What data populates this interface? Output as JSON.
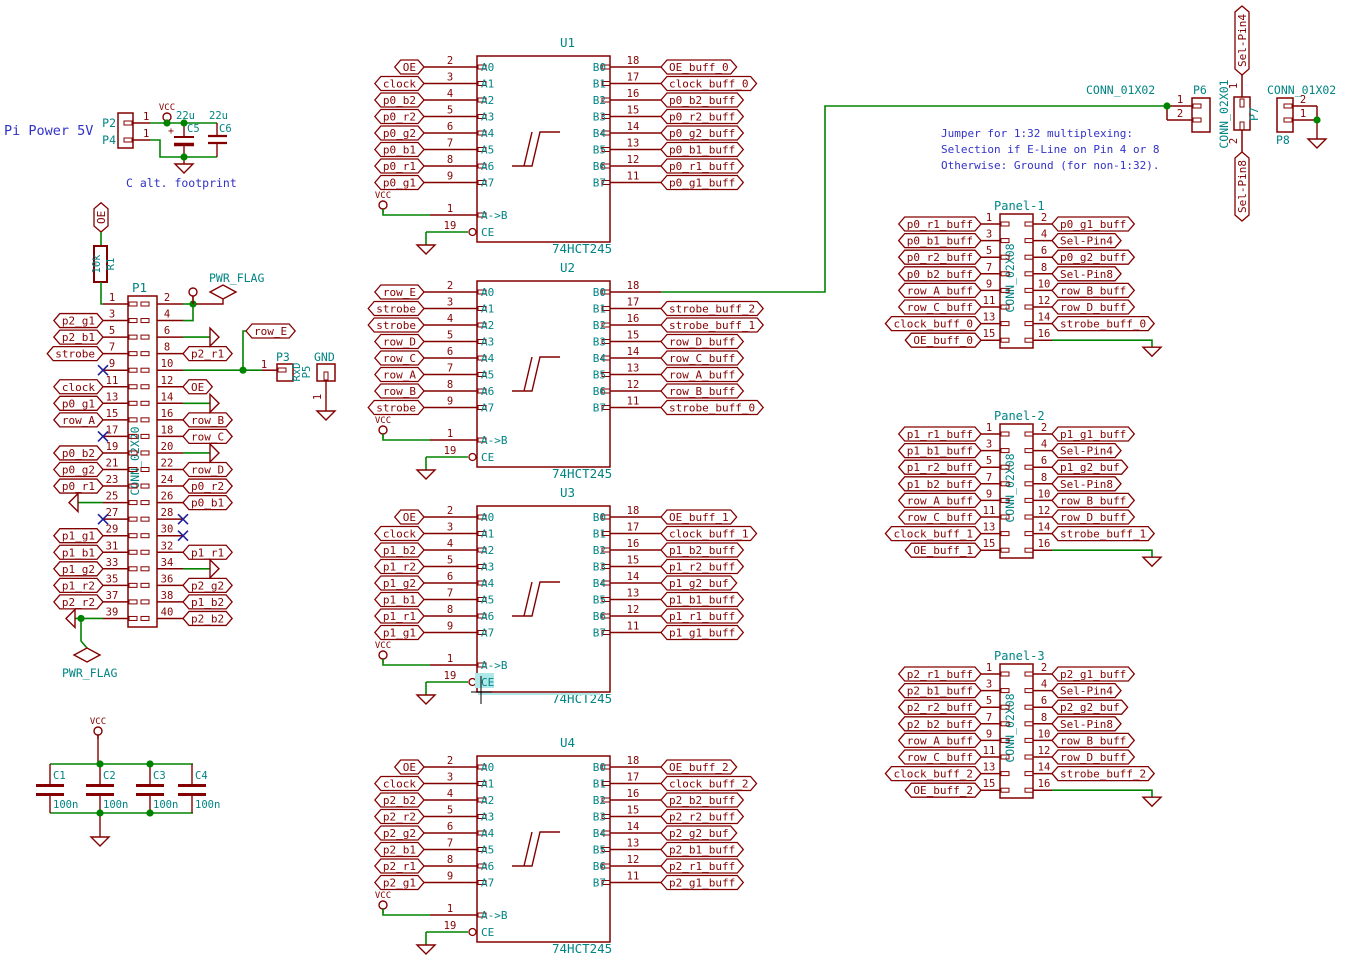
{
  "colors": {
    "symbol": "#840000",
    "wire": "#008400",
    "text": "#008484",
    "note": "#3232C8",
    "noconnect": "#20209A",
    "highlight": "#AEE8E8",
    "cursor": "#000000",
    "background": "#FFFFFF"
  },
  "notes": {
    "pi_power": "Pi Power 5V",
    "c_alt": "C alt. footprint",
    "jumper_line1": "Jumper for 1:32 multiplexing:",
    "jumper_line2": "Selection if E-Line on Pin 4 or 8",
    "jumper_line3": "Otherwise: Ground (for non-1:32)."
  },
  "vcc_net": "VCC",
  "power_in": {
    "refs": [
      "P2",
      "P4"
    ],
    "pins": [
      "1",
      "1"
    ],
    "caps": [
      {
        "ref": "C5",
        "value": "22u",
        "plus": "+"
      },
      {
        "ref": "C6",
        "value": "22u"
      }
    ]
  },
  "pullup": {
    "net": "OE",
    "ref": "R1",
    "value": "10k"
  },
  "pwr_flag_top": "PWR_FLAG",
  "pwr_flag_bottom": "PWR_FLAG",
  "p1": {
    "ref": "P1",
    "value": "CONN_02X20",
    "row_e": "row_E",
    "left": [
      {
        "num": "1"
      },
      {
        "num": "3",
        "label": "p2_g1"
      },
      {
        "num": "5",
        "label": "p2_b1"
      },
      {
        "num": "7",
        "label": "strobe"
      },
      {
        "num": "9",
        "nc": true
      },
      {
        "num": "11",
        "label": "clock"
      },
      {
        "num": "13",
        "label": "p0_g1"
      },
      {
        "num": "15",
        "label": "row_A"
      },
      {
        "num": "17",
        "nc": true
      },
      {
        "num": "19",
        "label": "p0_b2"
      },
      {
        "num": "21",
        "label": "p0_g2"
      },
      {
        "num": "23",
        "label": "p0_r1"
      },
      {
        "num": "25",
        "gnd": true
      },
      {
        "num": "27",
        "nc": true
      },
      {
        "num": "29",
        "label": "p1_g1"
      },
      {
        "num": "31",
        "label": "p1_b1"
      },
      {
        "num": "33",
        "label": "p1_g2"
      },
      {
        "num": "35",
        "label": "p1_r2"
      },
      {
        "num": "37",
        "label": "p2_r2"
      },
      {
        "num": "39"
      }
    ],
    "right": [
      {
        "num": "2"
      },
      {
        "num": "4"
      },
      {
        "num": "6",
        "gnd": true
      },
      {
        "num": "8",
        "label": "p2_r1"
      },
      {
        "num": "10"
      },
      {
        "num": "12",
        "label": "OE"
      },
      {
        "num": "14",
        "gnd": true
      },
      {
        "num": "16",
        "label": "row_B"
      },
      {
        "num": "18",
        "label": "row_C"
      },
      {
        "num": "20",
        "gnd": true
      },
      {
        "num": "22",
        "label": "row_D"
      },
      {
        "num": "24",
        "label": "p0_r2"
      },
      {
        "num": "26",
        "label": "p0_b1"
      },
      {
        "num": "28",
        "nc": true
      },
      {
        "num": "30",
        "nc": true
      },
      {
        "num": "32",
        "label": "p1_r1"
      },
      {
        "num": "34",
        "gnd": true
      },
      {
        "num": "36",
        "label": "p2_g2"
      },
      {
        "num": "38",
        "label": "p1_b2"
      },
      {
        "num": "40",
        "label": "p2_b2"
      }
    ]
  },
  "p3": {
    "ref": "P3",
    "pin": "1",
    "value": "RxD",
    "alt_ref": "P5"
  },
  "gnd_plug": {
    "value": "GND",
    "pin": "1"
  },
  "ics": [
    {
      "ref": "U1",
      "value": "74HCT245",
      "dir_pin": {
        "num": "1",
        "name": "A->B"
      },
      "ce_pin": {
        "num": "19",
        "name": "CE"
      },
      "left": [
        {
          "num": "2",
          "name": "A0",
          "label": "OE"
        },
        {
          "num": "3",
          "name": "A1",
          "label": "clock"
        },
        {
          "num": "4",
          "name": "A2",
          "label": "p0_b2"
        },
        {
          "num": "5",
          "name": "A3",
          "label": "p0_r2"
        },
        {
          "num": "6",
          "name": "A4",
          "label": "p0_g2"
        },
        {
          "num": "7",
          "name": "A5",
          "label": "p0_b1"
        },
        {
          "num": "8",
          "name": "A6",
          "label": "p0_r1"
        },
        {
          "num": "9",
          "name": "A7",
          "label": "p0_g1"
        }
      ],
      "right": [
        {
          "num": "18",
          "name": "B0",
          "label": "OE_buff_0"
        },
        {
          "num": "17",
          "name": "B1",
          "label": "clock_buff_0"
        },
        {
          "num": "16",
          "name": "B2",
          "label": "p0_b2_buff"
        },
        {
          "num": "15",
          "name": "B3",
          "label": "p0_r2_buff"
        },
        {
          "num": "14",
          "name": "B4",
          "label": "p0_g2_buff"
        },
        {
          "num": "13",
          "name": "B5",
          "label": "p0_b1_buff"
        },
        {
          "num": "12",
          "name": "B6",
          "label": "p0_r1_buff"
        },
        {
          "num": "11",
          "name": "B7",
          "label": "p0_g1_buff"
        }
      ]
    },
    {
      "ref": "U2",
      "value": "74HCT245",
      "dir_pin": {
        "num": "1",
        "name": "A->B"
      },
      "ce_pin": {
        "num": "19",
        "name": "CE"
      },
      "left": [
        {
          "num": "2",
          "name": "A0",
          "label": "row_E"
        },
        {
          "num": "3",
          "name": "A1",
          "label": "strobe"
        },
        {
          "num": "4",
          "name": "A2",
          "label": "strobe"
        },
        {
          "num": "5",
          "name": "A3",
          "label": "row_D"
        },
        {
          "num": "6",
          "name": "A4",
          "label": "row_C"
        },
        {
          "num": "7",
          "name": "A5",
          "label": "row_A"
        },
        {
          "num": "8",
          "name": "A6",
          "label": "row_B"
        },
        {
          "num": "9",
          "name": "A7",
          "label": "strobe"
        }
      ],
      "right": [
        {
          "num": "18",
          "name": "B0"
        },
        {
          "num": "17",
          "name": "B1",
          "label": "strobe_buff_2"
        },
        {
          "num": "16",
          "name": "B2",
          "label": "strobe_buff_1"
        },
        {
          "num": "15",
          "name": "B3",
          "label": "row_D_buff"
        },
        {
          "num": "14",
          "name": "B4",
          "label": "row_C_buff"
        },
        {
          "num": "13",
          "name": "B5",
          "label": "row_A_buff"
        },
        {
          "num": "12",
          "name": "B6",
          "label": "row_B_buff"
        },
        {
          "num": "11",
          "name": "B7",
          "label": "strobe_buff_0"
        }
      ]
    },
    {
      "ref": "U3",
      "value": "74HCT245",
      "dir_pin": {
        "num": "1",
        "name": "A->B"
      },
      "ce_pin": {
        "num": "19",
        "name": "CE",
        "cursor": true
      },
      "left": [
        {
          "num": "2",
          "name": "A0",
          "label": "OE"
        },
        {
          "num": "3",
          "name": "A1",
          "label": "clock"
        },
        {
          "num": "4",
          "name": "A2",
          "label": "p1_b2"
        },
        {
          "num": "5",
          "name": "A3",
          "label": "p1_r2"
        },
        {
          "num": "6",
          "name": "A4",
          "label": "p1_g2"
        },
        {
          "num": "7",
          "name": "A5",
          "label": "p1_b1"
        },
        {
          "num": "8",
          "name": "A6",
          "label": "p1_r1"
        },
        {
          "num": "9",
          "name": "A7",
          "label": "p1_g1"
        }
      ],
      "right": [
        {
          "num": "18",
          "name": "B0",
          "label": "OE_buff_1"
        },
        {
          "num": "17",
          "name": "B1",
          "label": "clock_buff_1"
        },
        {
          "num": "16",
          "name": "B2",
          "label": "p1_b2_buff"
        },
        {
          "num": "15",
          "name": "B3",
          "label": "p1_r2_buff"
        },
        {
          "num": "14",
          "name": "B4",
          "label": "p1_g2_buf"
        },
        {
          "num": "13",
          "name": "B5",
          "label": "p1_b1_buff"
        },
        {
          "num": "12",
          "name": "B6",
          "label": "p1_r1_buff"
        },
        {
          "num": "11",
          "name": "B7",
          "label": "p1_g1_buff"
        }
      ]
    },
    {
      "ref": "U4",
      "value": "74HCT245",
      "dir_pin": {
        "num": "1",
        "name": "A->B"
      },
      "ce_pin": {
        "num": "19",
        "name": "CE"
      },
      "left": [
        {
          "num": "2",
          "name": "A0",
          "label": "OE"
        },
        {
          "num": "3",
          "name": "A1",
          "label": "clock"
        },
        {
          "num": "4",
          "name": "A2",
          "label": "p2_b2"
        },
        {
          "num": "5",
          "name": "A3",
          "label": "p2_r2"
        },
        {
          "num": "6",
          "name": "A4",
          "label": "p2_g2"
        },
        {
          "num": "7",
          "name": "A5",
          "label": "p2_b1"
        },
        {
          "num": "8",
          "name": "A6",
          "label": "p2_r1"
        },
        {
          "num": "9",
          "name": "A7",
          "label": "p2_g1"
        }
      ],
      "right": [
        {
          "num": "18",
          "name": "B0",
          "label": "OE_buff_2"
        },
        {
          "num": "17",
          "name": "B1",
          "label": "clock_buff_2"
        },
        {
          "num": "16",
          "name": "B2",
          "label": "p2_b2_buff"
        },
        {
          "num": "15",
          "name": "B3",
          "label": "p2_r2_buff"
        },
        {
          "num": "14",
          "name": "B4",
          "label": "p2_g2_buf"
        },
        {
          "num": "13",
          "name": "B5",
          "label": "p2_b1_buff"
        },
        {
          "num": "12",
          "name": "B6",
          "label": "p2_r1_buff"
        },
        {
          "num": "11",
          "name": "B7",
          "label": "p2_g1_buff"
        }
      ]
    }
  ],
  "panels": [
    {
      "title": "Panel-1",
      "value": "CONN_02X08",
      "left": [
        {
          "num": "1",
          "label": "p0_r1_buff"
        },
        {
          "num": "3",
          "label": "p0_b1_buff"
        },
        {
          "num": "5",
          "label": "p0_r2_buff"
        },
        {
          "num": "7",
          "label": "p0_b2_buff"
        },
        {
          "num": "9",
          "label": "row_A_buff"
        },
        {
          "num": "11",
          "label": "row_C_buff"
        },
        {
          "num": "13",
          "label": "clock_buff_0"
        },
        {
          "num": "15",
          "label": "OE_buff_0"
        }
      ],
      "right": [
        {
          "num": "2",
          "label": "p0_g1_buff"
        },
        {
          "num": "4",
          "label": "Sel-Pin4"
        },
        {
          "num": "6",
          "label": "p0_g2_buff"
        },
        {
          "num": "8",
          "label": "Sel-Pin8"
        },
        {
          "num": "10",
          "label": "row_B_buff"
        },
        {
          "num": "12",
          "label": "row_D_buff"
        },
        {
          "num": "14",
          "label": "strobe_buff_0"
        },
        {
          "num": "16"
        }
      ]
    },
    {
      "title": "Panel-2",
      "value": "CONN_02X08",
      "left": [
        {
          "num": "1",
          "label": "p1_r1_buff"
        },
        {
          "num": "3",
          "label": "p1_b1_buff"
        },
        {
          "num": "5",
          "label": "p1_r2_buff"
        },
        {
          "num": "7",
          "label": "p1_b2_buff"
        },
        {
          "num": "9",
          "label": "row_A_buff"
        },
        {
          "num": "11",
          "label": "row_C_buff"
        },
        {
          "num": "13",
          "label": "clock_buff_1"
        },
        {
          "num": "15",
          "label": "OE_buff_1"
        }
      ],
      "right": [
        {
          "num": "2",
          "label": "p1_g1_buff"
        },
        {
          "num": "4",
          "label": "Sel-Pin4"
        },
        {
          "num": "6",
          "label": "p1_g2_buf"
        },
        {
          "num": "8",
          "label": "Sel-Pin8"
        },
        {
          "num": "10",
          "label": "row_B_buff"
        },
        {
          "num": "12",
          "label": "row_D_buff"
        },
        {
          "num": "14",
          "label": "strobe_buff_1"
        },
        {
          "num": "16"
        }
      ]
    },
    {
      "title": "Panel-3",
      "value": "CONN_02X08",
      "left": [
        {
          "num": "1",
          "label": "p2_r1_buff"
        },
        {
          "num": "3",
          "label": "p2_b1_buff"
        },
        {
          "num": "5",
          "label": "p2_r2_buff"
        },
        {
          "num": "7",
          "label": "p2_b2_buff"
        },
        {
          "num": "9",
          "label": "row_A_buff"
        },
        {
          "num": "11",
          "label": "row_C_buff"
        },
        {
          "num": "13",
          "label": "clock_buff_2"
        },
        {
          "num": "15",
          "label": "OE_buff_2"
        }
      ],
      "right": [
        {
          "num": "2",
          "label": "p2_g1_buff"
        },
        {
          "num": "4",
          "label": "Sel-Pin4"
        },
        {
          "num": "6",
          "label": "p2_g2_buf"
        },
        {
          "num": "8",
          "label": "Sel-Pin8"
        },
        {
          "num": "10",
          "label": "row_B_buff"
        },
        {
          "num": "12",
          "label": "row_D_buff"
        },
        {
          "num": "14",
          "label": "strobe_buff_2"
        },
        {
          "num": "16"
        }
      ]
    }
  ],
  "jumper": {
    "p6": {
      "header": "CONN_01X02",
      "ref": "P6",
      "pins": [
        "1",
        "2"
      ]
    },
    "p7": {
      "ref": "P7",
      "value": "CONN_02X01",
      "pins": [
        "1",
        "2"
      ],
      "top": "Sel-Pin4",
      "bottom": "Sel-Pin8"
    },
    "p8": {
      "header": "CONN_01X02",
      "ref": "P8",
      "pins": [
        "2",
        "1"
      ]
    }
  },
  "decoupling": {
    "caps": [
      {
        "ref": "C1",
        "value": "100n"
      },
      {
        "ref": "C2",
        "value": "100n"
      },
      {
        "ref": "C3",
        "value": "100n"
      },
      {
        "ref": "C4",
        "value": "100n"
      }
    ]
  }
}
